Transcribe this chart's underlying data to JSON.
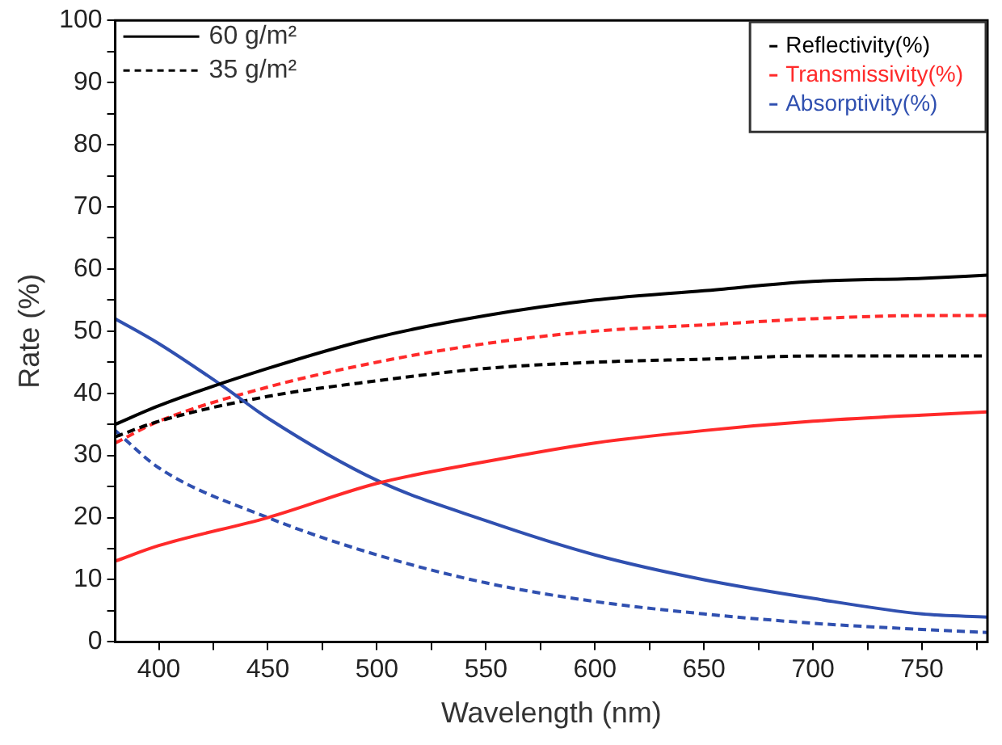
{
  "chart_data": {
    "type": "line",
    "xlabel": "Wavelength (nm)",
    "ylabel": "Rate (%)",
    "xlim": [
      380,
      780
    ],
    "ylim": [
      0,
      100
    ],
    "xticks": [
      400,
      {
        "value": 425,
        "label": null
      },
      450,
      {
        "value": 475,
        "label": null
      },
      500,
      {
        "value": 525,
        "label": null
      },
      550,
      {
        "value": 575,
        "label": null
      },
      600,
      {
        "value": 625,
        "label": null
      },
      650,
      {
        "value": 675,
        "label": null
      },
      700,
      {
        "value": 725,
        "label": null
      },
      750,
      {
        "value": 775,
        "label": null
      }
    ],
    "yticks": [
      0,
      {
        "value": 5,
        "label": null
      },
      10,
      {
        "value": 15,
        "label": null
      },
      20,
      {
        "value": 25,
        "label": null
      },
      30,
      {
        "value": 35,
        "label": null
      },
      40,
      {
        "value": 45,
        "label": null
      },
      50,
      {
        "value": 55,
        "label": null
      },
      60,
      {
        "value": 65,
        "label": null
      },
      70,
      {
        "value": 75,
        "label": null
      },
      80,
      {
        "value": 85,
        "label": null
      },
      90,
      {
        "value": 95,
        "label": null
      },
      100
    ],
    "grid": false,
    "legend": "top right",
    "marker": "none",
    "annotations": [
      "60 g/m²",
      "35 g/m²"
    ],
    "series": [
      {
        "name": "Reflectivity(%)",
        "color": "#000000",
        "line_style": "solid",
        "x": [
          380,
          400,
          450,
          500,
          550,
          600,
          650,
          700,
          750,
          780
        ],
        "values": [
          35,
          38,
          44,
          49,
          52.5,
          55,
          56.5,
          58,
          58.5,
          59
        ]
      },
      {
        "name": "Transmissivity(%)",
        "color": "#ff2a2a",
        "line_style": "solid",
        "x": [
          380,
          400,
          450,
          500,
          550,
          600,
          650,
          700,
          750,
          780
        ],
        "values": [
          13,
          15.5,
          20,
          25.5,
          29,
          32,
          34,
          35.5,
          36.5,
          37
        ]
      },
      {
        "name": "Absorptivity(%)",
        "color": "#3050b0",
        "line_style": "solid",
        "x": [
          380,
          400,
          430,
          450,
          500,
          550,
          600,
          650,
          700,
          750,
          780
        ],
        "values": [
          52,
          48,
          41,
          36,
          26,
          19.5,
          14,
          10,
          7,
          4.5,
          4
        ]
      },
      {
        "color": "#000000",
        "line_style": "dashed",
        "x": [
          380,
          400,
          450,
          500,
          550,
          600,
          650,
          700,
          750,
          780
        ],
        "values": [
          33,
          35.5,
          39.5,
          42,
          44,
          45,
          45.5,
          46,
          46,
          46
        ]
      },
      {
        "color": "#ff2a2a",
        "line_style": "dashed",
        "x": [
          380,
          400,
          450,
          500,
          550,
          600,
          650,
          700,
          750,
          780
        ],
        "values": [
          32,
          35.5,
          41,
          45,
          48,
          50,
          51,
          52,
          52.5,
          52.5
        ]
      },
      {
        "color": "#3050b0",
        "line_style": "dashed",
        "x": [
          380,
          400,
          450,
          500,
          550,
          600,
          650,
          700,
          750,
          780
        ],
        "values": [
          34,
          28,
          20,
          14,
          9.5,
          6.5,
          4.5,
          3,
          2,
          1.5
        ]
      }
    ]
  }
}
